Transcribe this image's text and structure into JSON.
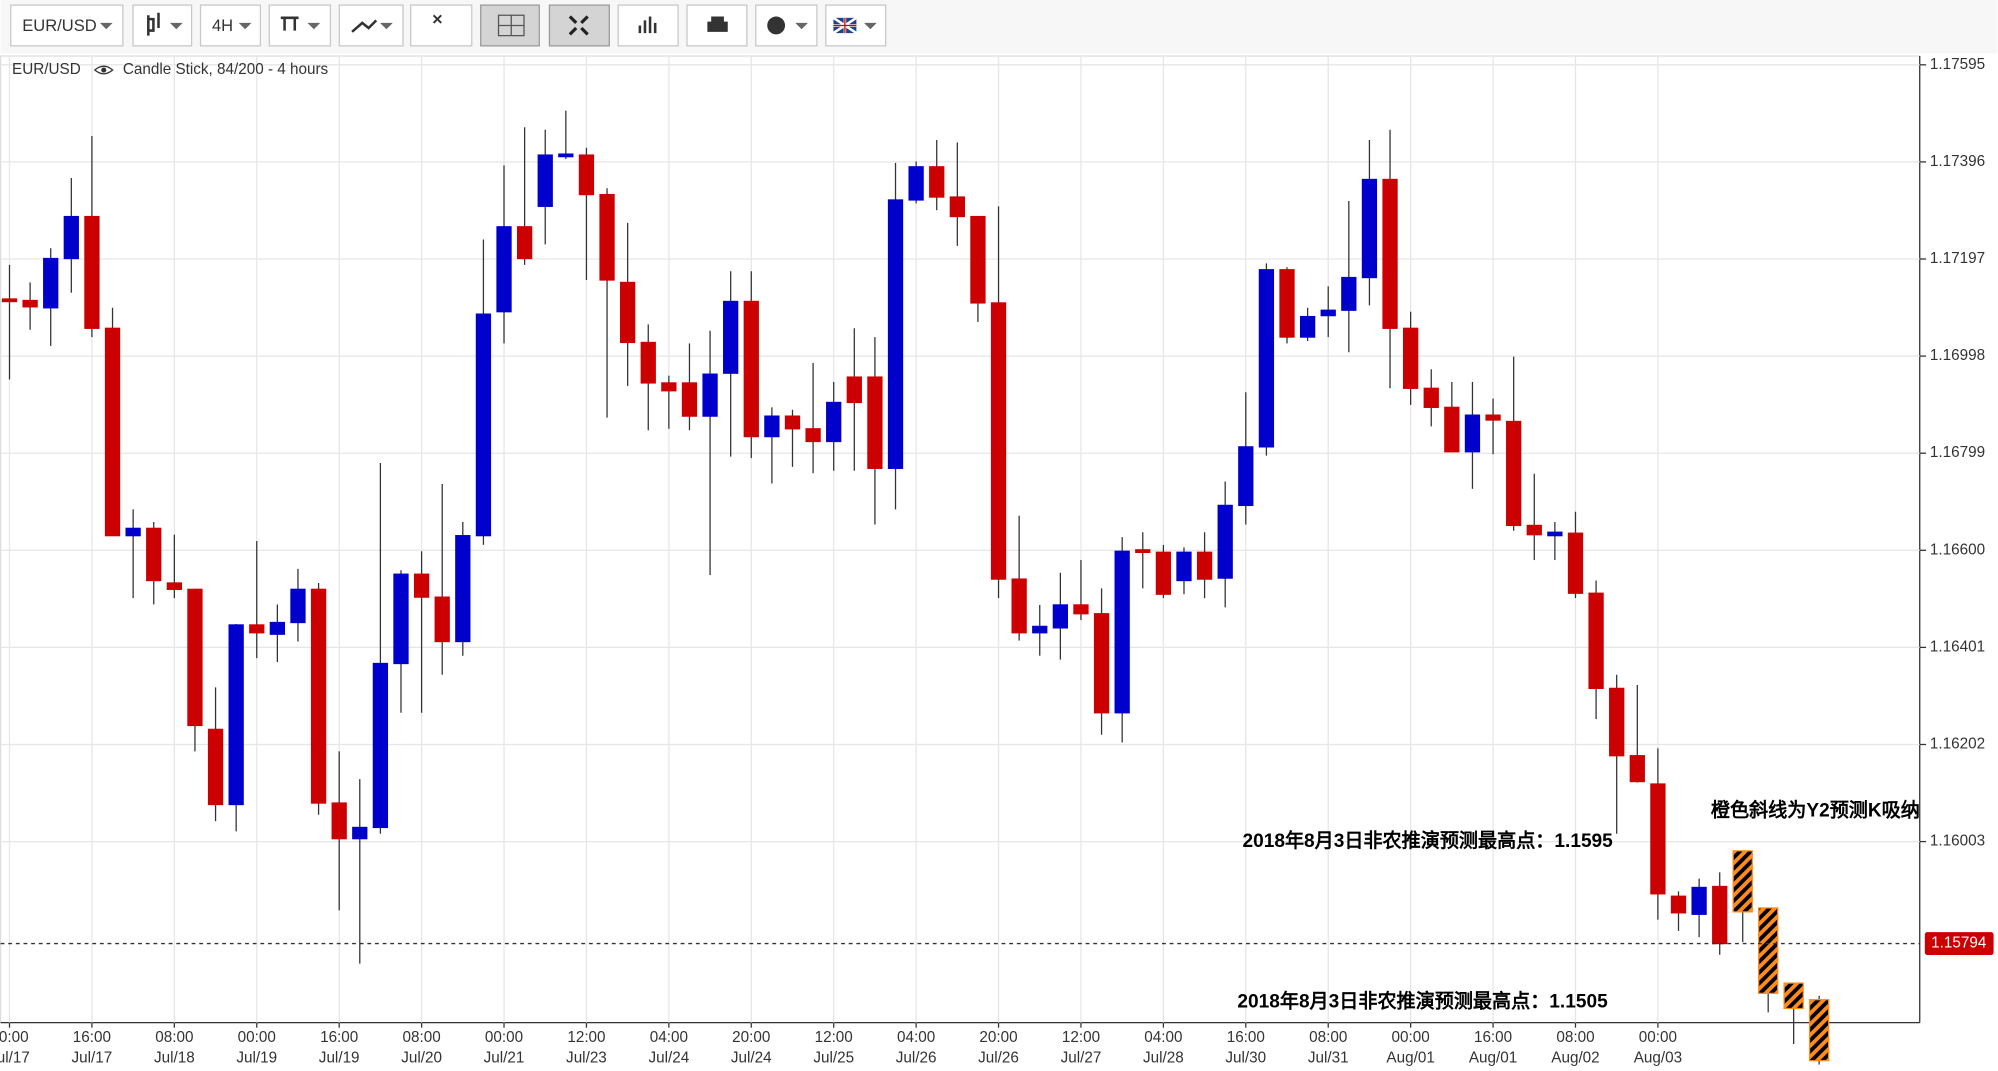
{
  "toolbar": {
    "symbol": "EUR/USD",
    "timeframe": "4H"
  },
  "chart_data": {
    "type": "candlestick",
    "symbol": "EUR/USD",
    "subtitle": "Candle Stick, 84/200 - 4 hours",
    "up_color": "#0000cc",
    "down_color": "#cc0000",
    "open": [
      1.17115,
      1.17112,
      1.17097,
      1.17198,
      1.17284,
      1.17055,
      1.1663,
      1.16645,
      1.16533,
      1.1652,
      1.16233,
      1.16079,
      1.16447,
      1.16428,
      1.16452,
      1.1652,
      1.16082,
      1.16009,
      1.16032,
      1.16368,
      1.16551,
      1.16504,
      1.16413,
      1.1663,
      1.17089,
      1.17263,
      1.17305,
      1.17407,
      1.1741,
      1.17329,
      1.17149,
      1.17026,
      1.16943,
      1.16943,
      1.16875,
      1.16963,
      1.1711,
      1.16833,
      1.16875,
      1.16849,
      1.16823,
      1.16955,
      1.16955,
      1.16768,
      1.17318,
      1.17386,
      1.17324,
      1.17284,
      1.17107,
      1.16541,
      1.16431,
      1.16441,
      1.16488,
      1.1647,
      1.16267,
      1.16601,
      1.16596,
      1.16538,
      1.16596,
      1.16543,
      1.16692,
      1.16812,
      1.17175,
      1.17037,
      1.17081,
      1.17092,
      1.17159,
      1.1736,
      1.17055,
      1.16932,
      1.16893,
      1.16802,
      1.16877,
      1.16864,
      1.16651,
      1.1663,
      1.16635,
      1.16512,
      1.16317,
      1.16179,
      1.16121,
      1.15891,
      1.15854,
      1.15911
    ],
    "high": [
      1.17185,
      1.17149,
      1.17219,
      1.17363,
      1.17449,
      1.17097,
      1.16684,
      1.16658,
      1.16632,
      1.1652,
      1.16319,
      1.16449,
      1.16619,
      1.16489,
      1.16562,
      1.16533,
      1.16188,
      1.16131,
      1.16779,
      1.16559,
      1.16598,
      1.16736,
      1.16658,
      1.17237,
      1.17389,
      1.17467,
      1.17462,
      1.17501,
      1.17425,
      1.17342,
      1.17271,
      1.17063,
      1.16958,
      1.17024,
      1.1705,
      1.17172,
      1.17172,
      1.16893,
      1.16888,
      1.16984,
      1.16945,
      1.17055,
      1.17037,
      1.17394,
      1.17397,
      1.17441,
      1.17436,
      1.17284,
      1.17305,
      1.16671,
      1.16488,
      1.16554,
      1.1658,
      1.16522,
      1.16627,
      1.16637,
      1.16611,
      1.16606,
      1.16637,
      1.16741,
      1.16924,
      1.17188,
      1.1718,
      1.17097,
      1.17141,
      1.17316,
      1.17441,
      1.17462,
      1.17089,
      1.16971,
      1.16945,
      1.16945,
      1.16911,
      1.16997,
      1.16757,
      1.16658,
      1.16679,
      1.16538,
      1.16345,
      1.16324,
      1.16194,
      1.15901,
      1.15927,
      1.1594
    ],
    "low": [
      1.1695,
      1.17052,
      1.17019,
      1.17128,
      1.17037,
      1.1663,
      1.16502,
      1.16489,
      1.16502,
      1.16188,
      1.16045,
      1.16024,
      1.16379,
      1.16371,
      1.16413,
      1.16058,
      1.15862,
      1.15753,
      1.16019,
      1.16267,
      1.16267,
      1.16345,
      1.16384,
      1.16611,
      1.17024,
      1.17185,
      1.17227,
      1.17402,
      1.17154,
      1.16872,
      1.16937,
      1.16846,
      1.16849,
      1.16846,
      1.16549,
      1.16792,
      1.16789,
      1.16737,
      1.16771,
      1.16758,
      1.16763,
      1.16763,
      1.16653,
      1.16684,
      1.17311,
      1.17297,
      1.17224,
      1.17068,
      1.16502,
      1.16415,
      1.16384,
      1.16376,
      1.16457,
      1.16222,
      1.16206,
      1.16522,
      1.16502,
      1.1651,
      1.16502,
      1.16483,
      1.16653,
      1.16794,
      1.17024,
      1.17029,
      1.17037,
      1.17006,
      1.17102,
      1.16932,
      1.16898,
      1.16854,
      1.16802,
      1.16726,
      1.16797,
      1.1664,
      1.1658,
      1.1658,
      1.16502,
      1.16254,
      1.16019,
      1.16124,
      1.15843,
      1.1582,
      1.15807,
      1.15771
    ],
    "close": [
      1.1711,
      1.17099,
      1.17198,
      1.17284,
      1.17055,
      1.1663,
      1.16645,
      1.16538,
      1.1652,
      1.16241,
      1.16079,
      1.16447,
      1.16431,
      1.16452,
      1.1652,
      1.16082,
      1.16009,
      1.16032,
      1.16368,
      1.16551,
      1.16504,
      1.16413,
      1.1663,
      1.17084,
      1.17263,
      1.17198,
      1.1741,
      1.17412,
      1.17329,
      1.17154,
      1.17026,
      1.16943,
      1.16927,
      1.16875,
      1.16961,
      1.1711,
      1.16833,
      1.16875,
      1.16849,
      1.16823,
      1.16903,
      1.16903,
      1.16768,
      1.17318,
      1.17386,
      1.17324,
      1.17284,
      1.17107,
      1.16541,
      1.16431,
      1.16444,
      1.16488,
      1.1647,
      1.16267,
      1.16598,
      1.16596,
      1.1651,
      1.16596,
      1.16541,
      1.16692,
      1.16812,
      1.17175,
      1.17037,
      1.17079,
      1.17092,
      1.17159,
      1.1736,
      1.17055,
      1.16932,
      1.16893,
      1.16802,
      1.16877,
      1.16867,
      1.16651,
      1.16632,
      1.16637,
      1.16512,
      1.16317,
      1.16179,
      1.16126,
      1.15896,
      1.15857,
      1.15909,
      1.15794
    ],
    "forecast": {
      "color": "#ff8c1a",
      "open": [
        1.15984,
        1.15867,
        1.15713,
        1.15679
      ],
      "high": [
        1.15984,
        1.15867,
        1.15713,
        1.15687
      ],
      "low": [
        1.15797,
        1.15653,
        1.15588,
        1.15546
      ],
      "close": [
        1.15859,
        1.15692,
        1.15661,
        1.15554
      ]
    },
    "x_labels": {
      "times": [
        "00:00",
        "16:00",
        "08:00",
        "00:00",
        "16:00",
        "08:00",
        "00:00",
        "12:00",
        "04:00",
        "20:00",
        "12:00",
        "04:00",
        "20:00",
        "12:00",
        "04:00",
        "16:00",
        "08:00",
        "00:00",
        "16:00",
        "08:00",
        "00:00"
      ],
      "dates": [
        "Jul/17",
        "Jul/17",
        "Jul/18",
        "Jul/19",
        "Jul/19",
        "Jul/20",
        "Jul/21",
        "Jul/23",
        "Jul/24",
        "Jul/24",
        "Jul/25",
        "Jul/26",
        "Jul/26",
        "Jul/27",
        "Jul/28",
        "Jul/30",
        "Jul/31",
        "Aug/01",
        "Aug/01",
        "Aug/02",
        "Aug/03"
      ]
    },
    "ylim": [
      1.15632,
      1.17613
    ],
    "yticks": [
      1.17595,
      1.17396,
      1.17197,
      1.16998,
      1.16799,
      {
        "value": 1.166,
        "label": "1.16600"
      },
      1.16401,
      1.16202,
      1.16003
    ],
    "grid": true,
    "last_price": 1.15794,
    "annotations": [
      "2018年8月3日非农推演预测最高点：1.1595",
      "2018年8月3日非农推演预测最高点：1.1505",
      "橙色斜线为Y2预测K吸纳"
    ]
  }
}
